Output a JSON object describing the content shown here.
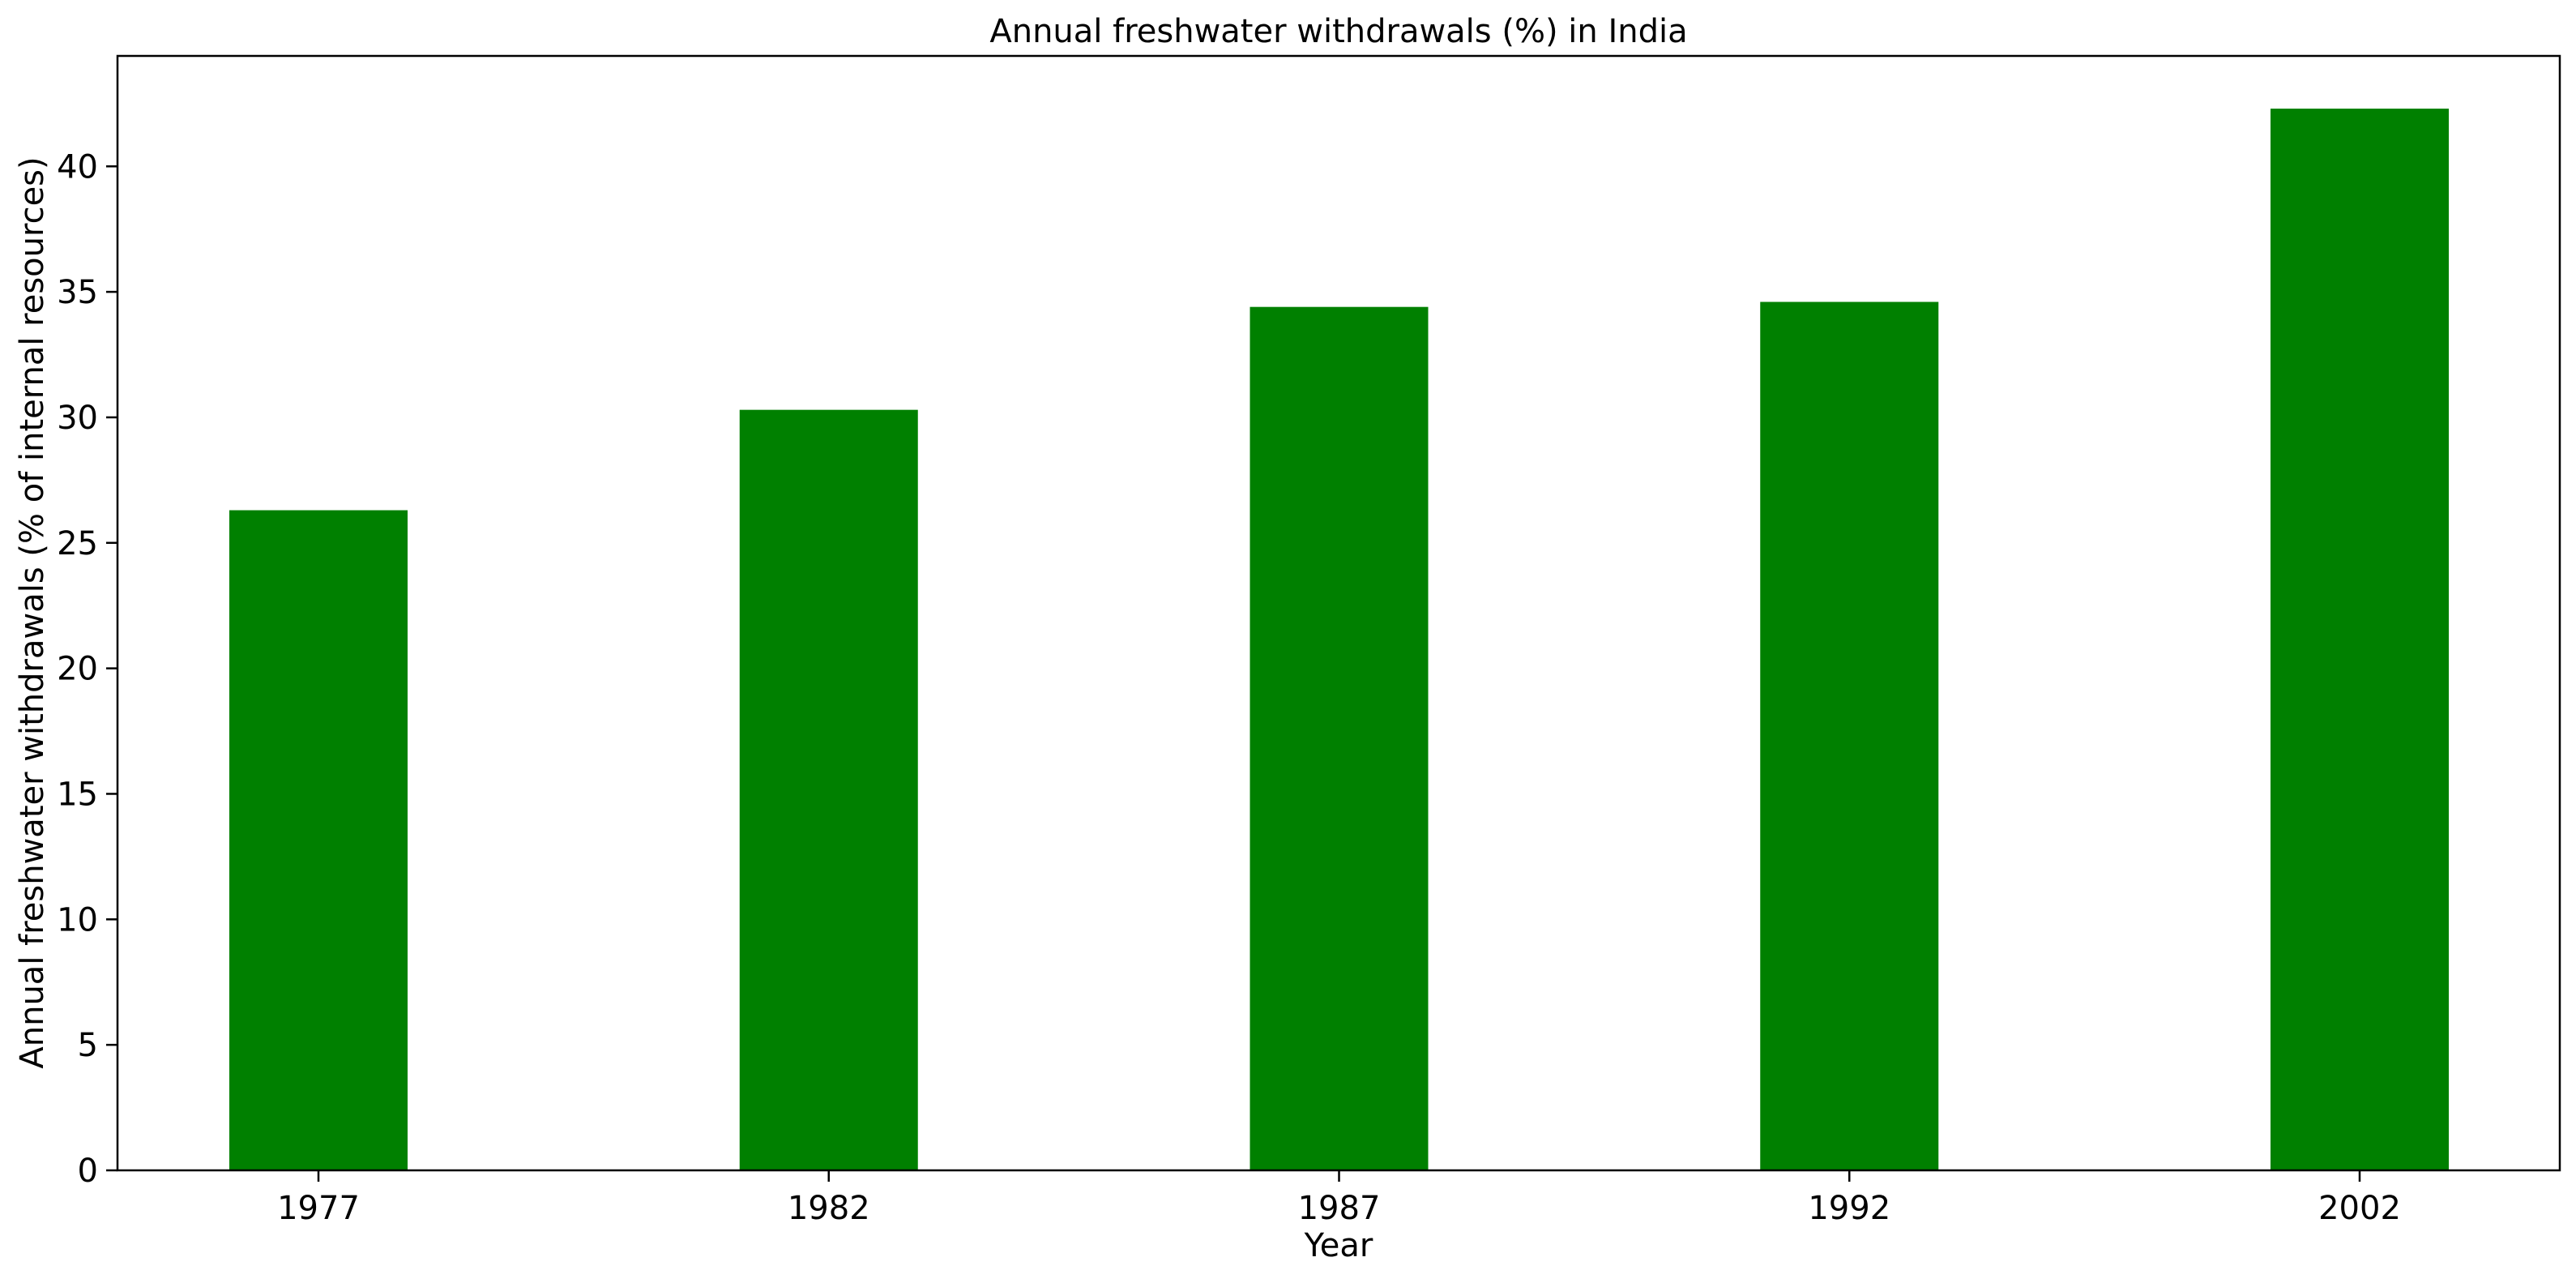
{
  "chart_data": {
    "type": "bar",
    "title": "Annual freshwater withdrawals (%) in India",
    "xlabel": "Year",
    "ylabel": "Annual freshwater withdrawals (% of internal resources)",
    "categories": [
      "1977",
      "1982",
      "1987",
      "1992",
      "2002"
    ],
    "values": [
      26.3,
      30.3,
      34.4,
      34.6,
      42.3
    ],
    "ylim": [
      0,
      44.4
    ],
    "yticks": [
      0,
      5,
      10,
      15,
      20,
      25,
      30,
      35,
      40
    ],
    "bar_color": "#008000",
    "grid": false,
    "legend": "none"
  }
}
